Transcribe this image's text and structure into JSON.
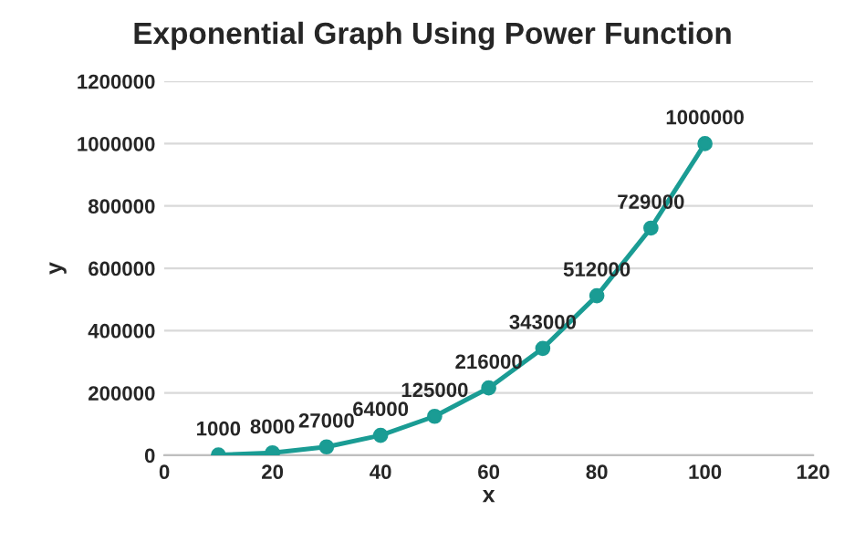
{
  "chart_data": {
    "type": "line",
    "title": "Exponential Graph Using Power Function",
    "xlabel": "x",
    "ylabel": "y",
    "x": [
      10,
      20,
      30,
      40,
      50,
      60,
      70,
      80,
      90,
      100
    ],
    "series": [
      {
        "color": "#1a9c94",
        "values": [
          1000,
          8000,
          27000,
          64000,
          125000,
          216000,
          343000,
          512000,
          729000,
          1000000
        ]
      }
    ],
    "xlim": [
      0,
      120
    ],
    "xticks": [
      0,
      20,
      40,
      60,
      80,
      100,
      120
    ],
    "ylim": [
      0,
      1200000
    ],
    "yticks": [
      0,
      200000,
      400000,
      600000,
      800000,
      1000000,
      1200000
    ],
    "grid": "y",
    "marker": "circle",
    "line_style": "solid",
    "data_labels": true
  }
}
